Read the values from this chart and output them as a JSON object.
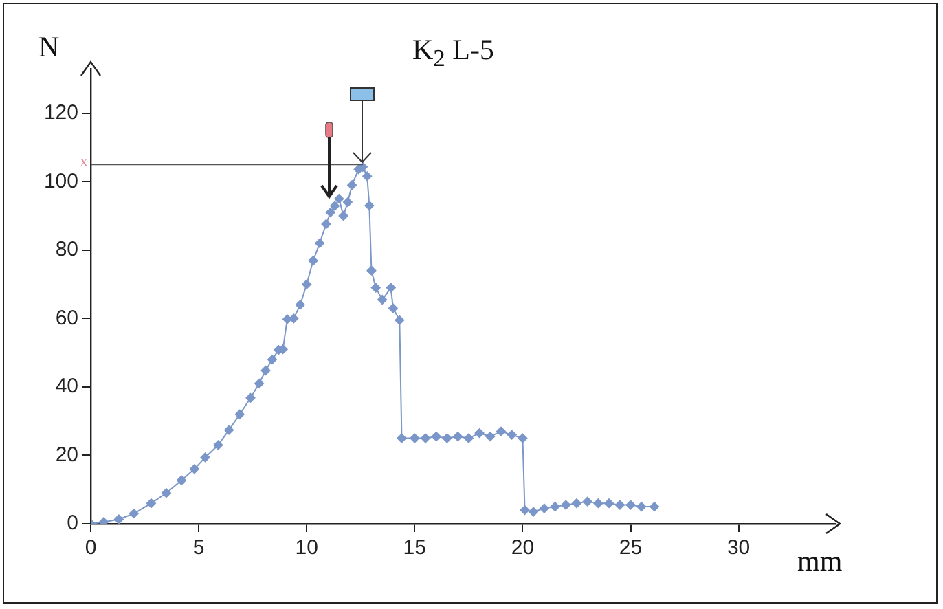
{
  "chart_data": {
    "type": "line",
    "title": "K$_{2}$ L-5",
    "xlabel": "mm",
    "ylabel": "N",
    "x": [
      0,
      0.6,
      1.3,
      2,
      2.8,
      3.5,
      4.2,
      4.8,
      5.3,
      5.9,
      6.4,
      6.9,
      7.4,
      7.8,
      8.1,
      8.4,
      8.7,
      8.9,
      9.1,
      9.4,
      9.7,
      10,
      10.3,
      10.6,
      10.9,
      11.1,
      11.3,
      11.5,
      11.7,
      11.9,
      12.1,
      12.4,
      12.6,
      12.8,
      12.9,
      13,
      13.2,
      13.5,
      13.9,
      14,
      14.3,
      14.4,
      15,
      15.5,
      16,
      16.5,
      17,
      17.5,
      18,
      18.5,
      19,
      19.5,
      20,
      20.1,
      20.5,
      21,
      21.5,
      22,
      22.5,
      23,
      23.5,
      24,
      24.5,
      25,
      25.5,
      26.1
    ],
    "series": [
      {
        "color": "#7b96c8",
        "values": [
          0,
          0.5,
          1.3,
          3,
          6,
          9,
          12.7,
          16,
          19.4,
          23,
          27.4,
          32,
          36.8,
          41,
          44.8,
          48,
          50.8,
          51,
          59.8,
          60,
          64,
          70,
          76.9,
          82,
          87.6,
          91,
          92.9,
          95,
          90,
          94,
          99,
          103.6,
          104.3,
          101.6,
          93,
          74,
          69,
          65.5,
          69,
          63,
          59.5,
          25,
          25,
          25,
          25.5,
          25,
          25.5,
          25,
          26.5,
          25.5,
          27,
          26,
          25,
          4,
          3.5,
          4.5,
          5,
          5.5,
          6,
          6.5,
          6,
          6,
          5.5,
          5.5,
          5,
          5
        ]
      }
    ],
    "xlim": [
      0,
      34.5
    ],
    "xticks": [
      0,
      5,
      10,
      15,
      20,
      25,
      30
    ],
    "ylim": [
      0,
      133
    ],
    "yticks": [
      0,
      20,
      40,
      60,
      80,
      100,
      120
    ],
    "ref_lines": [
      {
        "axis": "y",
        "value": 105,
        "label": "x",
        "color": "#555555"
      }
    ],
    "grid": false,
    "legend": false,
    "marker": "diamond",
    "line_style": "solid"
  }
}
